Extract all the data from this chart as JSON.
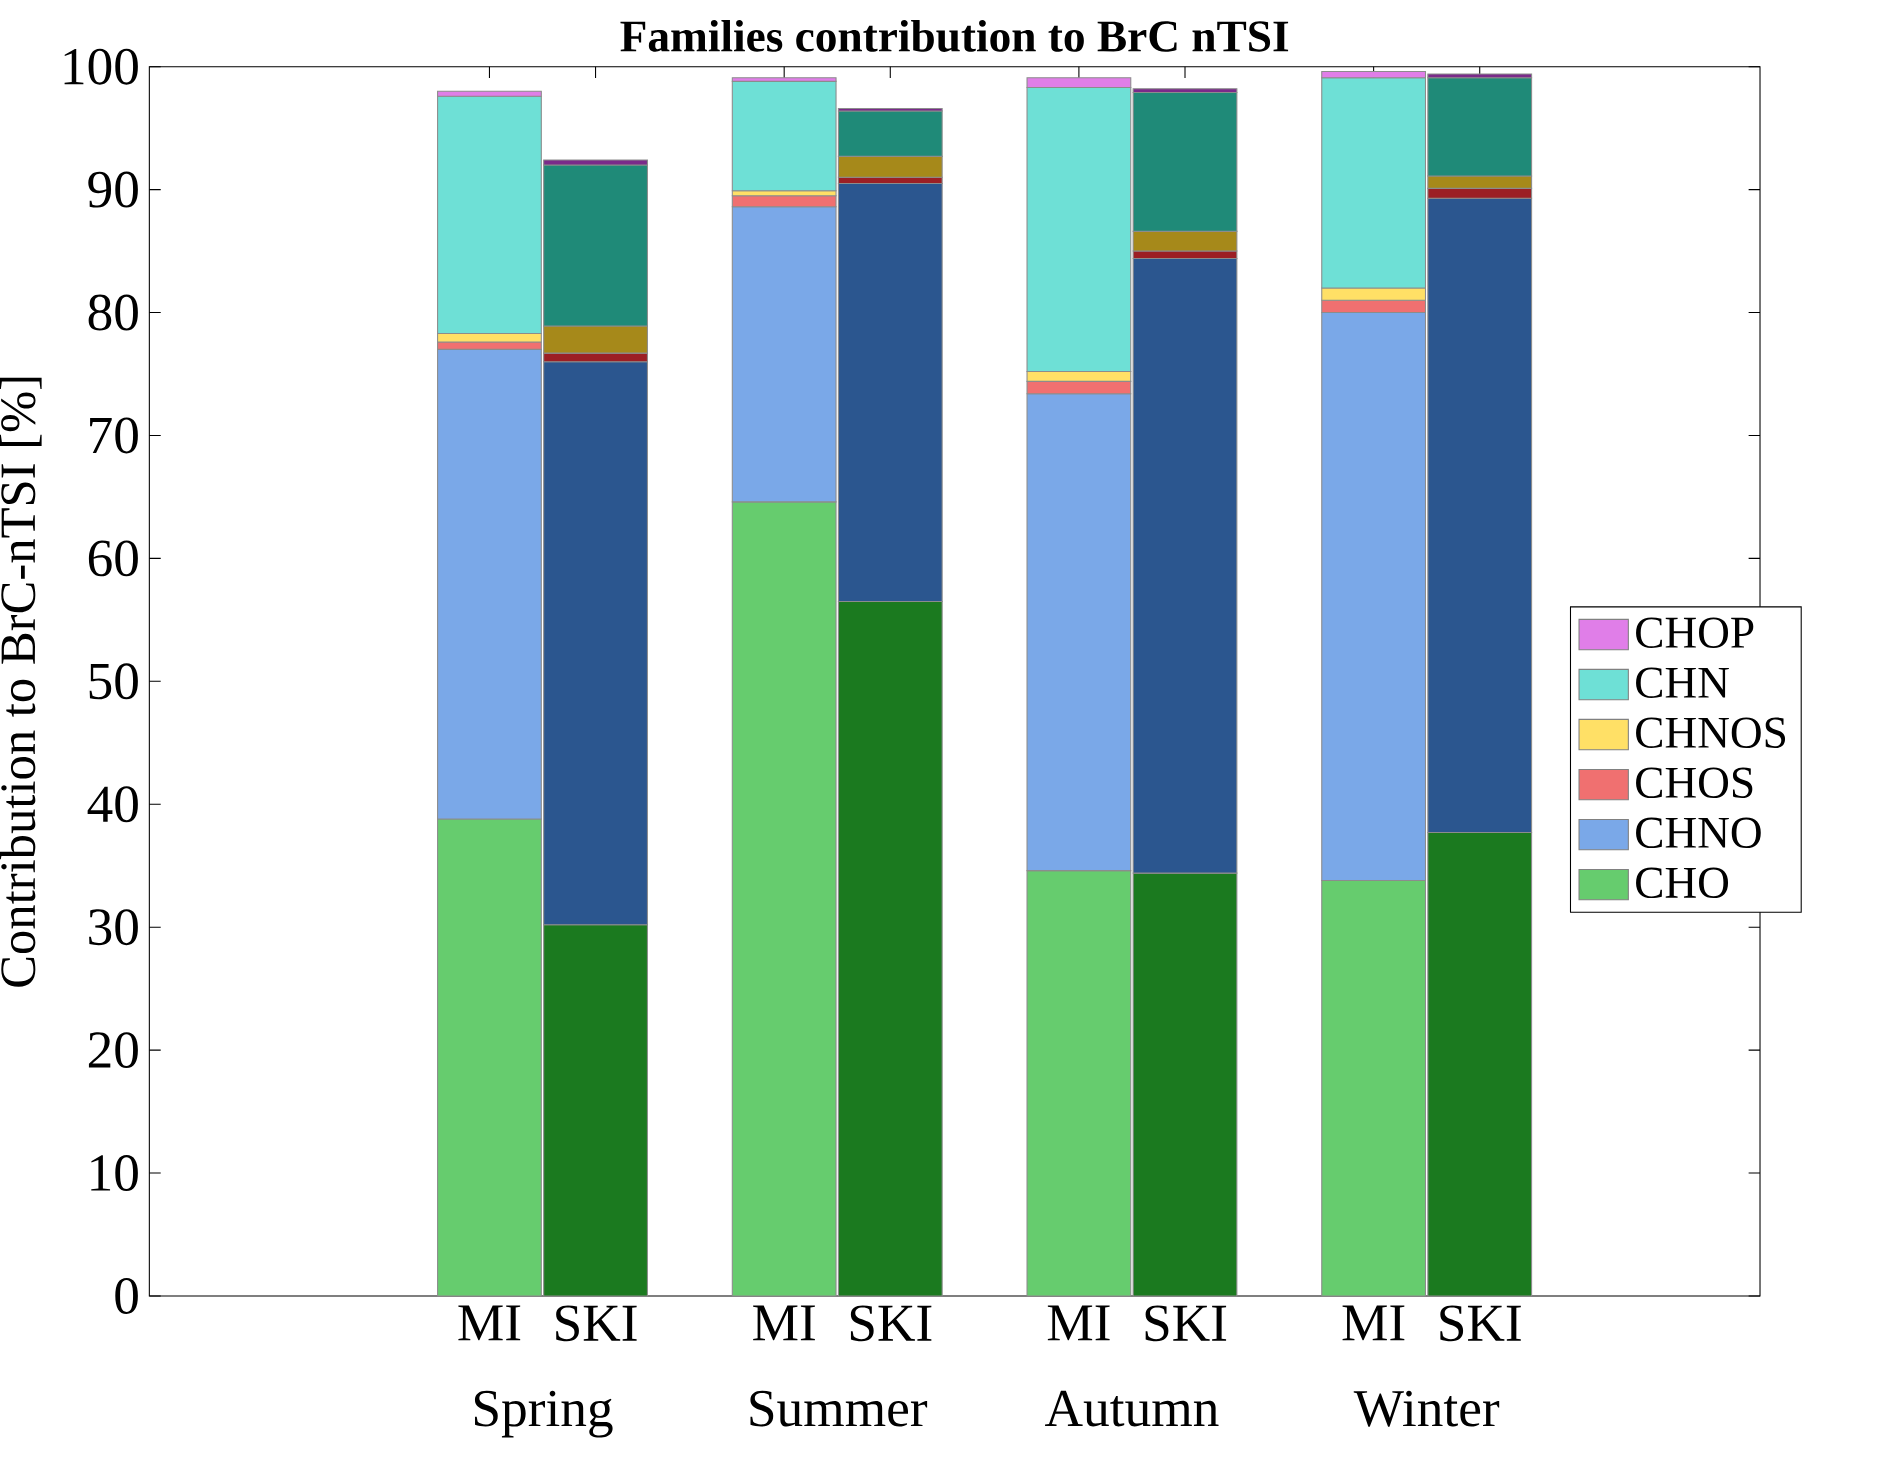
{
  "chart_data": {
    "type": "bar",
    "stacked": true,
    "title": "**Families contribution to BrC nTSI**",
    "ylabel": "Contribution to BrC-nTSI [%]",
    "categories": [
      "MI",
      "SKI",
      "MI",
      "SKI",
      "MI",
      "SKI",
      "MI",
      "SKI"
    ],
    "annotations": [
      "Spring",
      "Summer",
      "Autumn",
      "Winter"
    ],
    "ylim": [
      0,
      100
    ],
    "yticks": [
      0,
      10,
      20,
      30,
      40,
      50,
      60,
      70,
      80,
      90,
      100
    ],
    "grid": false,
    "legend": "right",
    "series": [
      {
        "name": "CHO",
        "color": "#66cc6e",
        "colors": [
          "#66cc6e",
          "#1b7a1f",
          "#66cc6e",
          "#1b7a1f",
          "#66cc6e",
          "#1b7a1f",
          "#66cc6e",
          "#1b7a1f"
        ],
        "values": [
          38.8,
          30.2,
          64.6,
          56.5,
          34.6,
          34.4,
          33.8,
          37.7
        ]
      },
      {
        "name": "CHNO",
        "color": "#7aa8e8",
        "colors": [
          "#7aa8e8",
          "#2b568f",
          "#7aa8e8",
          "#2b568f",
          "#7aa8e8",
          "#2b568f",
          "#7aa8e8",
          "#2b568f"
        ],
        "values": [
          38.2,
          45.8,
          24.0,
          34.0,
          38.8,
          50.0,
          46.2,
          51.6
        ]
      },
      {
        "name": "CHOS",
        "color": "#f07070",
        "colors": [
          "#f07070",
          "#9c1f24",
          "#f07070",
          "#9c1f24",
          "#f07070",
          "#9c1f24",
          "#f07070",
          "#9c1f24"
        ],
        "values": [
          0.6,
          0.7,
          0.9,
          0.5,
          1.0,
          0.6,
          1.0,
          0.8
        ]
      },
      {
        "name": "CHNOS",
        "color": "#ffe066",
        "colors": [
          "#ffe066",
          "#a6891a",
          "#ffe066",
          "#a6891a",
          "#ffe066",
          "#a6891a",
          "#ffe066",
          "#a6891a"
        ],
        "values": [
          0.7,
          2.2,
          0.4,
          1.7,
          0.8,
          1.6,
          1.0,
          1.0
        ]
      },
      {
        "name": "CHN",
        "color": "#6ee0d6",
        "colors": [
          "#6ee0d6",
          "#1f8a78",
          "#6ee0d6",
          "#1f8a78",
          "#6ee0d6",
          "#1f8a78",
          "#6ee0d6",
          "#1f8a78"
        ],
        "values": [
          19.3,
          13.1,
          8.9,
          3.7,
          23.1,
          11.3,
          17.1,
          8.0
        ]
      },
      {
        "name": "CHOP",
        "color": "#e07ee8",
        "colors": [
          "#e07ee8",
          "#7a2a8a",
          "#e07ee8",
          "#7a2a8a",
          "#e07ee8",
          "#7a2a8a",
          "#e07ee8",
          "#7a2a8a"
        ],
        "values": [
          0.4,
          0.4,
          0.3,
          0.2,
          0.8,
          0.3,
          0.5,
          0.3
        ]
      }
    ]
  }
}
